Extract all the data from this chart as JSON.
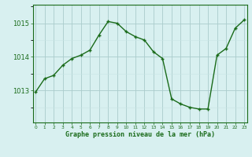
{
  "x": [
    0,
    1,
    2,
    3,
    4,
    5,
    6,
    7,
    8,
    9,
    10,
    11,
    12,
    13,
    14,
    15,
    16,
    17,
    18,
    19,
    20,
    21,
    22,
    23
  ],
  "y": [
    1012.95,
    1013.35,
    1013.45,
    1013.75,
    1013.95,
    1014.05,
    1014.2,
    1014.65,
    1015.05,
    1015.0,
    1014.75,
    1014.6,
    1014.5,
    1014.15,
    1013.95,
    1012.75,
    1012.6,
    1012.5,
    1012.45,
    1012.45,
    1014.05,
    1014.25,
    1014.85,
    1015.1
  ],
  "line_color": "#1a6b1a",
  "marker": "+",
  "marker_color": "#1a6b1a",
  "bg_color": "#d8f0f0",
  "grid_major_color": "#aacccc",
  "grid_minor_color": "#c8e4e4",
  "xlabel": "Graphe pression niveau de la mer (hPa)",
  "ylabel_ticks": [
    1013,
    1014,
    1015
  ],
  "ylim": [
    1012.05,
    1015.55
  ],
  "xlim": [
    -0.3,
    23.3
  ],
  "xtick_labels": [
    "0",
    "1",
    "2",
    "3",
    "4",
    "5",
    "6",
    "7",
    "8",
    "9",
    "10",
    "11",
    "12",
    "13",
    "14",
    "15",
    "16",
    "17",
    "18",
    "19",
    "20",
    "21",
    "22",
    "23"
  ],
  "tick_color": "#1a6b1a",
  "spine_color": "#1a6b1a",
  "font_color": "#1a6b1a",
  "line_width": 1.0,
  "marker_size": 3.5
}
